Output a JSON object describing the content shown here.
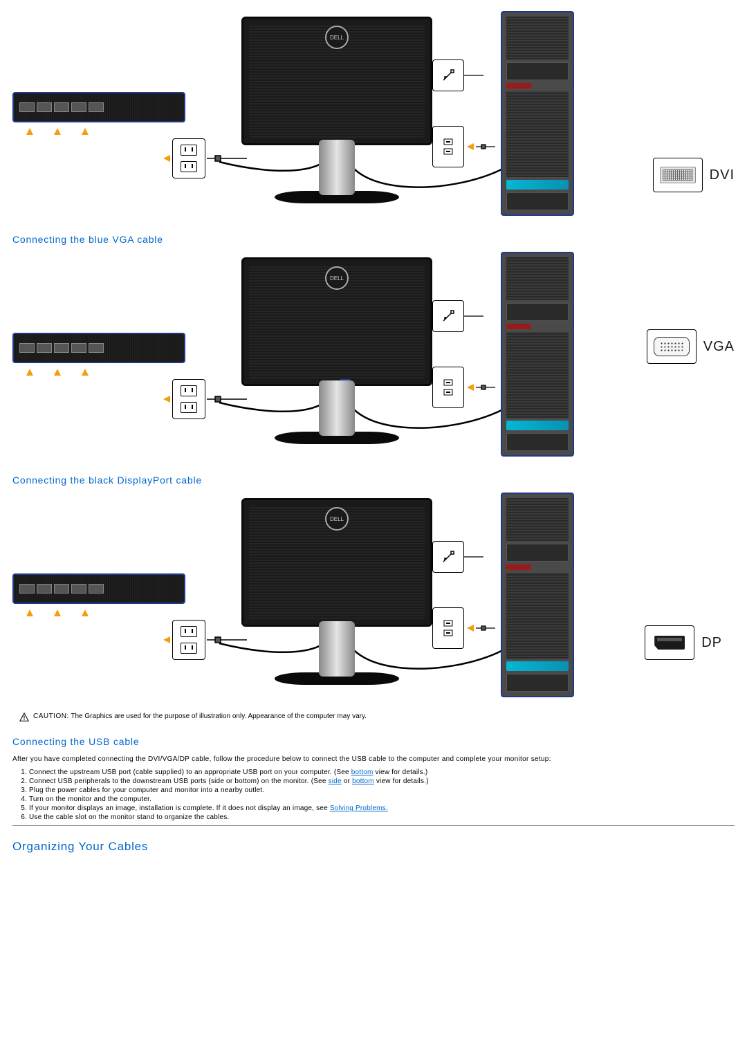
{
  "colors": {
    "heading": "#0066cc",
    "link": "#0066cc",
    "arrow": "#f59e0b",
    "outline": "#1e3a8a",
    "cable": "#1a1a1a",
    "text": "#000000",
    "background": "#ffffff",
    "tower_body": "#4a4a4a",
    "tower_cyan": "#06b6d4",
    "tower_red": "#991b1b",
    "stand_metal": "#e5e5e5"
  },
  "typography": {
    "heading_fontsize_pt": 11,
    "major_heading_fontsize_pt": 13,
    "body_fontsize_pt": 7,
    "connector_label_fontsize_pt": 16,
    "font_family": "Verdana, Arial"
  },
  "diagrams": [
    {
      "connector_label": "DVI",
      "connector_style": "dvi",
      "heading_above": null
    },
    {
      "connector_label": "VGA",
      "connector_style": "vga",
      "heading_above": "Connecting the blue VGA cable"
    },
    {
      "connector_label": "DP",
      "connector_style": "dp",
      "heading_above": "Connecting the black DisplayPort cable"
    }
  ],
  "caution": {
    "label": "CAUTION:",
    "text": "The Graphics are used for the purpose of illustration only. Appearance of the computer may vary."
  },
  "usb_section": {
    "heading": "Connecting the USB cable",
    "intro": "After you have completed connecting the DVI/VGA/DP cable, follow the procedure below to connect the USB cable to the computer and complete your monitor setup:",
    "steps": [
      {
        "text_before": "Connect the upstream USB port (cable supplied) to an appropriate USB port on your computer. (See ",
        "link": "bottom",
        "text_after": " view for details.)"
      },
      {
        "text_before": "Connect USB peripherals to the downstream USB ports (side or bottom) on the monitor. (See ",
        "link": "side",
        "mid": " or ",
        "link2": "bottom",
        "text_after": " view for details.)"
      },
      {
        "text_before": "Plug the power cables for your computer and monitor into a nearby outlet."
      },
      {
        "text_before": "Turn on the monitor and the computer."
      },
      {
        "text_before": "If your monitor displays an image, installation is complete. If it does not display an image, see ",
        "link": "Solving Problems.",
        "text_after": ""
      },
      {
        "text_before": "Use the cable slot on the monitor stand to organize the cables."
      }
    ]
  },
  "organizing_heading": "Organizing Your Cables"
}
